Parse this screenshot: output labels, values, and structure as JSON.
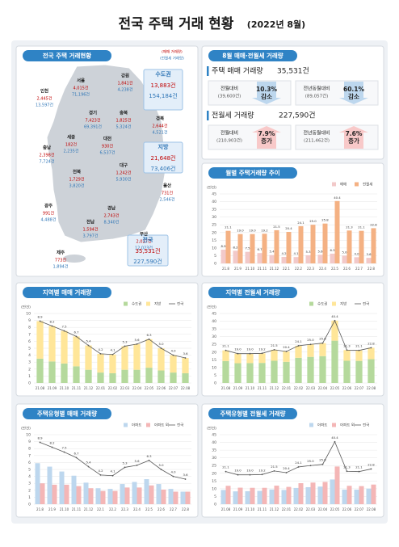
{
  "header": {
    "title": "전국 주택 거래 현황",
    "subtitle": "(2022년 8월)"
  },
  "map": {
    "title": "전국 주택 거래현황",
    "legend": {
      "sale": "(매매 거래량)",
      "rent": "(전월세 거래량)"
    },
    "regions": [
      {
        "name": "인천",
        "sale": "2,445건",
        "rent": "13,597건"
      },
      {
        "name": "서울",
        "sale": "4,015건",
        "rent": "71,196건"
      },
      {
        "name": "강원",
        "sale": "1,841건",
        "rent": "4,238건"
      },
      {
        "name": "수도권",
        "sale": "13,883건",
        "rent": "154,184건"
      },
      {
        "name": "경기",
        "sale": "7,423건",
        "rent": "69,391건"
      },
      {
        "name": "충북",
        "sale": "1,825건",
        "rent": "5,324건"
      },
      {
        "name": "세종",
        "sale": "182건",
        "rent": "2,235건"
      },
      {
        "name": "대전",
        "sale": "930건",
        "rent": "6,537건"
      },
      {
        "name": "경북",
        "sale": "2,644건",
        "rent": "4,521건"
      },
      {
        "name": "충남",
        "sale": "2,398건",
        "rent": "7,724건"
      },
      {
        "name": "지방",
        "sale": "21,648건",
        "rent": "73,406건"
      },
      {
        "name": "대구",
        "sale": "1,242건",
        "rent": "5,930건"
      },
      {
        "name": "전북",
        "sale": "1,729건",
        "rent": "3,820건"
      },
      {
        "name": "울산",
        "sale": "731건",
        "rent": "2,546건"
      },
      {
        "name": "경남",
        "sale": "2,743건",
        "rent": "8,340건"
      },
      {
        "name": "광주",
        "sale": "991건",
        "rent": "4,488건"
      },
      {
        "name": "전남",
        "sale": "1,594건",
        "rent": "3,797건"
      },
      {
        "name": "부산",
        "sale": "2,027건",
        "rent": "12,023건"
      },
      {
        "name": "전국",
        "sale": "35,531건",
        "rent": "227,590건"
      },
      {
        "name": "제주",
        "sale": "773건",
        "rent": "1,894건"
      }
    ]
  },
  "summary": {
    "title": "8월 매매·전월세 거래량",
    "sections": [
      {
        "label": "주택 매매 거래량",
        "total": "35,531건",
        "items": [
          {
            "label": "전월대비",
            "base": "(39,600건)",
            "pct": "10.3%",
            "dir": "감소"
          },
          {
            "label": "전년동월대비",
            "base": "(89,057건)",
            "pct": "60.1%",
            "dir": "감소"
          }
        ]
      },
      {
        "label": "전월세 거래량",
        "total": "227,590건",
        "items": [
          {
            "label": "전월대비",
            "base": "(210,903건)",
            "pct": "7.9%",
            "dir": "증가"
          },
          {
            "label": "전년동월대비",
            "base": "(211,462건)",
            "pct": "7.6%",
            "dir": "증가"
          }
        ]
      }
    ]
  },
  "chart_data": [
    {
      "type": "bar",
      "title": "월별 주택거래량 추이",
      "unit": "(만건)",
      "stacked": false,
      "legend": "top-right",
      "categories": [
        "21.8",
        "21.9",
        "21.10",
        "21.11",
        "21.12",
        "22.1",
        "22.2",
        "22.3",
        "22.4",
        "22.5",
        "22.6",
        "22.7",
        "22.8"
      ],
      "ylim": [
        0,
        45
      ],
      "yticks": [
        0,
        5,
        10,
        15,
        20,
        25,
        30,
        35,
        40,
        45
      ],
      "series": [
        {
          "name": "매매",
          "type": "bar",
          "color": "#f2c9c9",
          "values": [
            8.9,
            8.2,
            7.5,
            6.7,
            5.4,
            4.2,
            4.1,
            5.3,
            5.6,
            6.3,
            5.0,
            4.0,
            3.6
          ],
          "value_labels": [
            "8.9",
            "8.2",
            "7.5",
            "6.7",
            "5.4",
            "4.2",
            "4.1",
            "5.3",
            "5.6",
            "6.3",
            "5.0",
            "4.0",
            "3.6"
          ]
        },
        {
          "name": "전월세",
          "type": "bar",
          "color": "#f4b183",
          "values": [
            21.1,
            19.0,
            19.0,
            19.2,
            21.5,
            20.4,
            24.1,
            25.0,
            25.8,
            40.4,
            21.3,
            21.1,
            22.8
          ],
          "value_labels": [
            "21.1",
            "19.0",
            "19.0",
            "19.2",
            "21.5",
            "20.4",
            "24.1",
            "25.0",
            "25.8",
            "40.4",
            "21.3",
            "21.1",
            "22.8"
          ]
        }
      ]
    },
    {
      "type": "bar",
      "title": "지역별 매매 거래량",
      "unit": "(만건)",
      "stacked": true,
      "legend": "top-right",
      "categories": [
        "21.08",
        "21.09",
        "21.10",
        "21.11",
        "21.12",
        "22.01",
        "22.02",
        "22.03",
        "22.04",
        "22.05",
        "22.06",
        "22.07",
        "22.08"
      ],
      "ylim": [
        0,
        10
      ],
      "yticks": [
        0,
        1,
        2,
        3,
        4,
        5,
        6,
        7,
        8,
        9,
        10
      ],
      "series": [
        {
          "name": "수도권",
          "type": "bar",
          "color": "#b5d99c",
          "values": [
            3.5,
            3.1,
            2.8,
            2.4,
            1.9,
            1.5,
            1.4,
            1.9,
            1.9,
            2.2,
            1.8,
            1.5,
            1.4
          ]
        },
        {
          "name": "지방",
          "type": "bar",
          "color": "#ffe699",
          "values": [
            5.4,
            5.1,
            4.7,
            4.3,
            3.5,
            2.7,
            2.7,
            3.4,
            3.7,
            4.1,
            3.2,
            2.5,
            2.2
          ]
        },
        {
          "name": "전국",
          "type": "line",
          "color": "#595959",
          "values": [
            8.9,
            8.2,
            7.5,
            6.7,
            5.4,
            4.2,
            4.1,
            5.3,
            5.6,
            6.3,
            5.0,
            4.0,
            3.6
          ],
          "value_labels": [
            "8.9",
            "8.2",
            "7.5",
            "6.7",
            "5.4",
            "4.2",
            "4.1",
            "5.3",
            "5.6",
            "6.3",
            "5.0",
            "4.0",
            "3.6"
          ]
        }
      ]
    },
    {
      "type": "bar",
      "title": "지역별 전월세 거래량",
      "unit": "(만건)",
      "stacked": true,
      "legend": "top-right",
      "categories": [
        "21.08",
        "21.09",
        "21.10",
        "21.11",
        "21.12",
        "22.01",
        "22.02",
        "22.03",
        "22.04",
        "22.05",
        "22.06",
        "22.07",
        "22.08"
      ],
      "ylim": [
        0,
        45
      ],
      "yticks": [
        0,
        5,
        10,
        15,
        20,
        25,
        30,
        35,
        40,
        45
      ],
      "series": [
        {
          "name": "수도권",
          "type": "bar",
          "color": "#b5d99c",
          "values": [
            14.2,
            12.8,
            12.9,
            13.0,
            14.4,
            13.7,
            16.3,
            16.9,
            17.4,
            27.4,
            14.4,
            14.3,
            15.4
          ]
        },
        {
          "name": "지방",
          "type": "bar",
          "color": "#ffe699",
          "values": [
            6.9,
            6.2,
            6.1,
            6.2,
            7.1,
            6.7,
            7.8,
            8.1,
            8.4,
            13.0,
            6.9,
            6.8,
            7.4
          ]
        },
        {
          "name": "전국",
          "type": "line",
          "color": "#595959",
          "values": [
            21.1,
            19.0,
            19.0,
            19.2,
            21.5,
            20.4,
            24.1,
            25.0,
            25.8,
            40.4,
            21.3,
            21.1,
            22.8
          ],
          "value_labels": [
            "21.1",
            "19.0",
            "19.0",
            "19.2",
            "21.5",
            "20.4",
            "24.1",
            "25.0",
            "25.8",
            "40.4",
            "21.3",
            "21.1",
            "22.8"
          ]
        }
      ]
    },
    {
      "type": "bar",
      "title": "주택유형별 매매 거래량",
      "unit": "(만건)",
      "stacked": false,
      "legend": "top-right",
      "categories": [
        "21.8",
        "21.9",
        "21.10",
        "21.11",
        "21.12",
        "22.1",
        "22.2",
        "22.3",
        "22.4",
        "22.5",
        "22.6",
        "22.7",
        "22.8"
      ],
      "ylim": [
        0,
        10
      ],
      "yticks": [
        0,
        1,
        2,
        3,
        4,
        5,
        6,
        7,
        8,
        9,
        10
      ],
      "series": [
        {
          "name": "아파트",
          "type": "bar",
          "color": "#bdd7ee",
          "values": [
            5.9,
            5.4,
            4.7,
            4.1,
            3.1,
            2.3,
            2.2,
            2.9,
            3.2,
            3.6,
            2.9,
            2.2,
            1.8
          ]
        },
        {
          "name": "아파트 외",
          "type": "bar",
          "color": "#f4b6b6",
          "values": [
            3.0,
            2.8,
            2.8,
            2.6,
            2.3,
            1.9,
            1.9,
            2.4,
            2.4,
            2.7,
            2.1,
            1.8,
            1.8
          ]
        },
        {
          "name": "전국",
          "type": "line",
          "color": "#595959",
          "values": [
            8.9,
            8.2,
            7.5,
            6.7,
            5.4,
            4.2,
            4.1,
            5.3,
            5.6,
            6.3,
            5.0,
            4.0,
            3.6
          ],
          "value_labels": [
            "8.9",
            "8.2",
            "7.5",
            "6.7",
            "5.4",
            "4.2",
            "4.1",
            "5.3",
            "5.6",
            "6.3",
            "5.0",
            "4.0",
            "3.6"
          ]
        }
      ]
    },
    {
      "type": "bar",
      "title": "주택유형별 전월세 거래량",
      "unit": "(만건)",
      "stacked": false,
      "legend": "top-right",
      "categories": [
        "21.08",
        "21.09",
        "21.10",
        "21.11",
        "21.12",
        "22.01",
        "22.02",
        "22.03",
        "22.04",
        "22.05",
        "22.06",
        "22.07",
        "22.08"
      ],
      "ylim": [
        0,
        45
      ],
      "yticks": [
        0,
        5,
        10,
        15,
        20,
        25,
        30,
        35,
        40,
        45
      ],
      "series": [
        {
          "name": "아파트",
          "type": "bar",
          "color": "#bdd7ee",
          "values": [
            9.2,
            8.3,
            8.4,
            8.6,
            9.5,
            9.2,
            10.5,
            11.0,
            11.4,
            16.0,
            9.4,
            9.4,
            10.1
          ]
        },
        {
          "name": "아파트 외",
          "type": "bar",
          "color": "#f4b6b6",
          "values": [
            11.9,
            10.7,
            10.6,
            10.6,
            12.0,
            11.2,
            13.6,
            14.0,
            14.4,
            24.4,
            11.9,
            11.7,
            12.7
          ]
        },
        {
          "name": "전국",
          "type": "line",
          "color": "#595959",
          "values": [
            21.1,
            19.0,
            19.0,
            19.2,
            21.5,
            20.4,
            24.1,
            25.0,
            25.8,
            40.4,
            21.3,
            21.1,
            22.8
          ],
          "value_labels": [
            "21.1",
            "19.0",
            "19.0",
            "19.2",
            "21.5",
            "20.4",
            "24.1",
            "25.0",
            "25.8",
            "40.4",
            "21.3",
            "21.1",
            "22.8"
          ]
        }
      ]
    }
  ]
}
